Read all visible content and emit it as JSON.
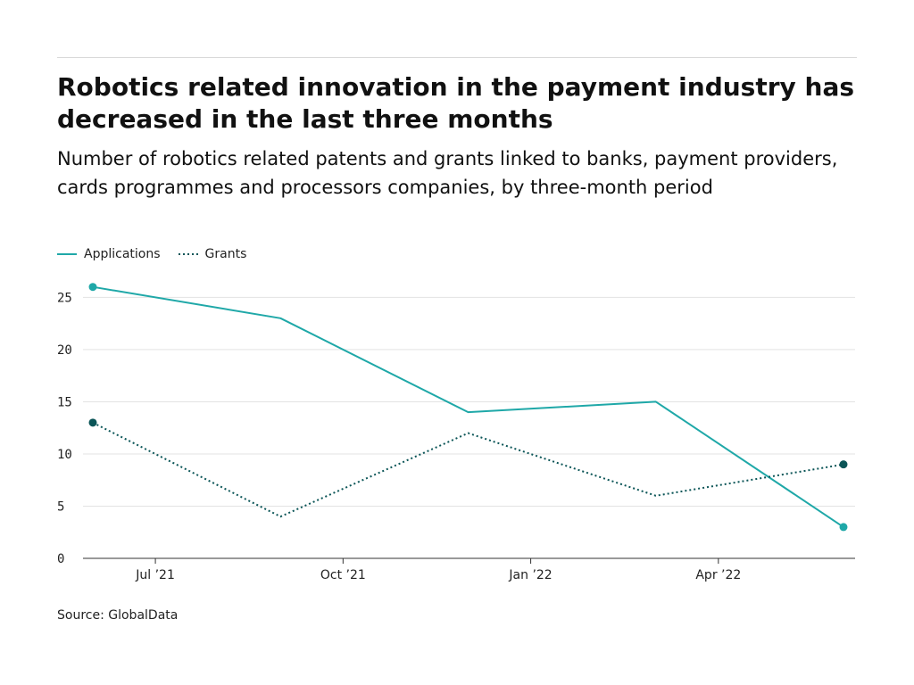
{
  "title": "Robotics related innovation in the payment industry has decreased in the last three months",
  "subtitle": "Number of robotics related patents and grants linked to banks, payment providers, cards programmes and processors companies, by three-month period",
  "source": "Source: GlobalData",
  "colors": {
    "applications": "#1fa8a8",
    "grants": "#0b5557",
    "grid": "#e3e3e3",
    "axis": "#333333"
  },
  "chart_data": {
    "type": "line",
    "title": "Robotics related innovation in the payment industry has decreased in the last three months",
    "subtitle": "Number of robotics related patents and grants linked to banks, payment providers, cards programmes and processors companies, by three-month period",
    "xlabel": "",
    "ylabel": "",
    "x": [
      "2021-06",
      "2021-09",
      "2021-12",
      "2022-03",
      "2022-06"
    ],
    "x_ticks": [
      "Jul ’21",
      "Oct ’21",
      "Jan ’22",
      "Apr ’22"
    ],
    "y_ticks": [
      0,
      5,
      10,
      15,
      20,
      25
    ],
    "ylim": [
      0,
      27
    ],
    "grid": true,
    "legend_position": "top-left",
    "series": [
      {
        "name": "Applications",
        "style": "solid",
        "color": "#1fa8a8",
        "values": [
          26,
          23,
          14,
          15,
          3
        ]
      },
      {
        "name": "Grants",
        "style": "dotted",
        "color": "#0b5557",
        "values": [
          13,
          4,
          12,
          6,
          9
        ]
      }
    ]
  }
}
